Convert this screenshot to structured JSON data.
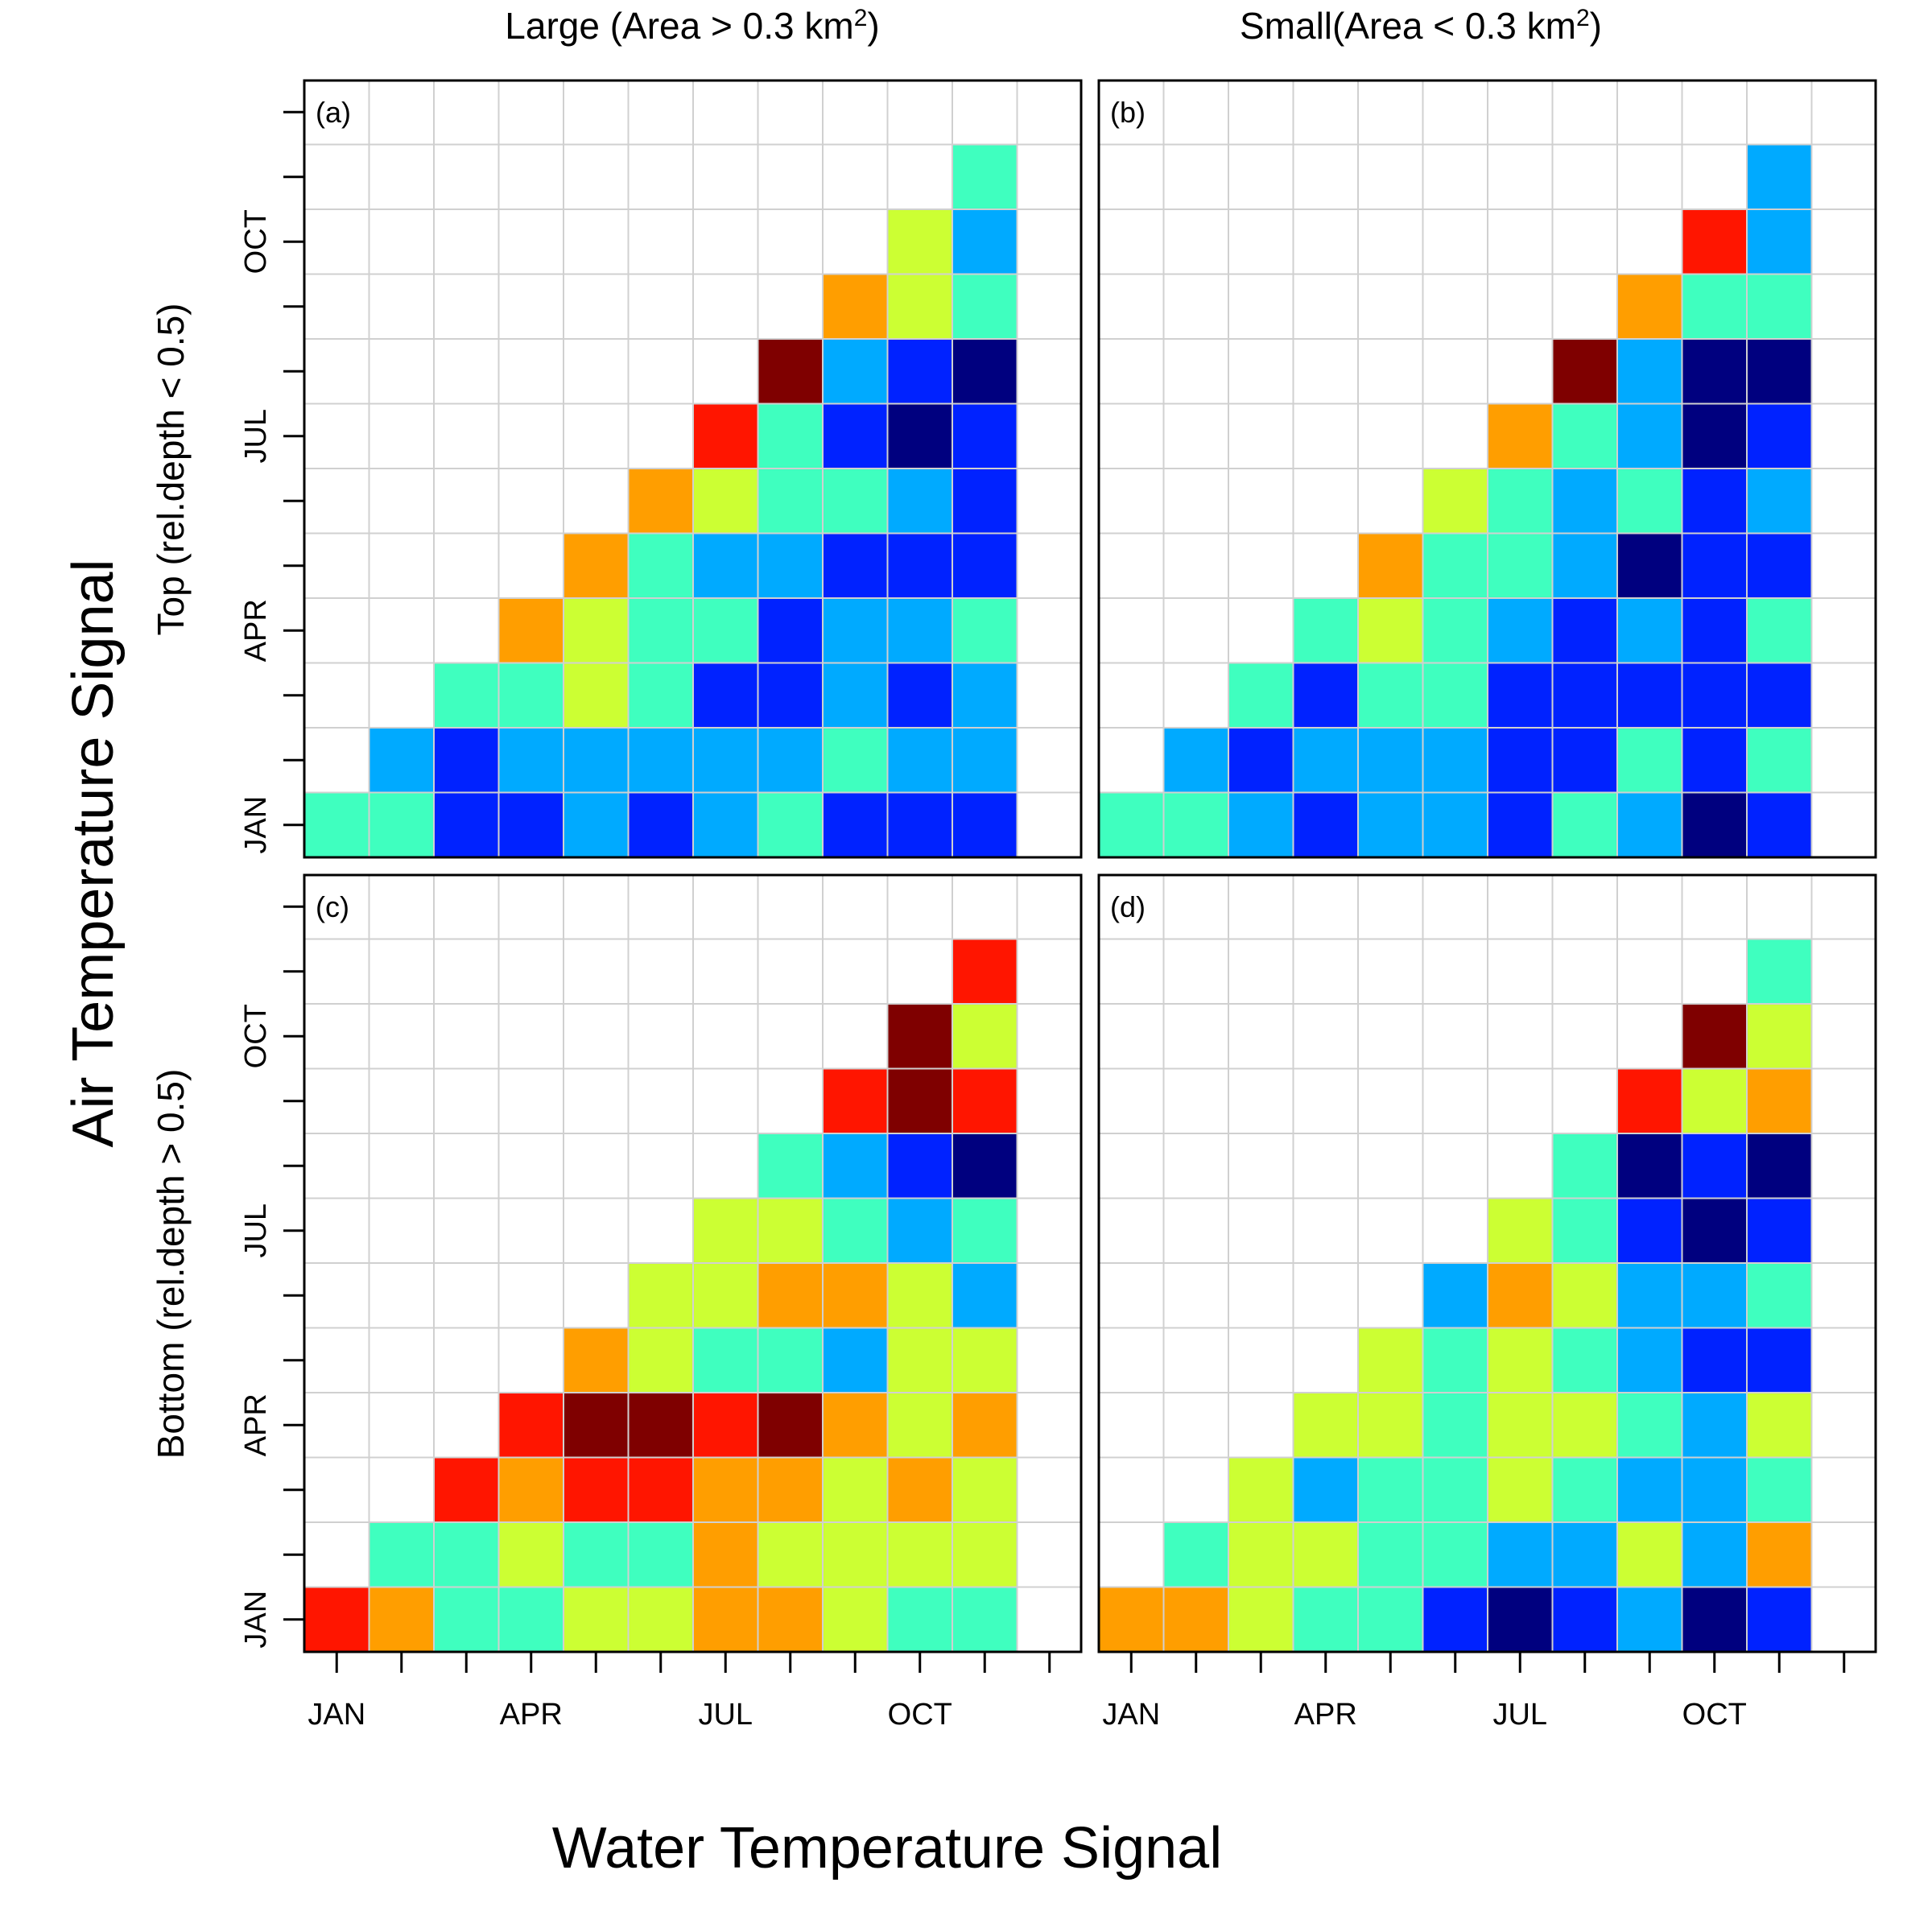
{
  "figure": {
    "xlabel": "Water Temperature Signal",
    "ylabel": "Air Temperature Signal",
    "column_titles": [
      {
        "pre": "Large (Area > 0.3 km",
        "sup": "2",
        "post": ")"
      },
      {
        "pre": "Small(Area < 0.3 km",
        "sup": "2",
        "post": ")"
      }
    ],
    "row_titles": [
      "Top (rel.depth < 0.5)",
      "Bottom (rel.depth > 0.5)"
    ]
  },
  "colors": {
    "palette": {
      "1": "#00007f",
      "2": "#0022ff",
      "3": "#00aaff",
      "4": "#3fffbf",
      "5": "#ccff33",
      "6": "#ff9e00",
      "7": "#ff1500",
      "8": "#7f0000"
    },
    "grid": "#d0d0d0",
    "frame": "#000000"
  },
  "chart_data": {
    "type": "heatmap",
    "x_ticks": [
      "JAN",
      "APR",
      "JUL",
      "OCT"
    ],
    "y_ticks": [
      "JAN",
      "APR",
      "JUL",
      "OCT"
    ],
    "months": 12,
    "panels": [
      {
        "label": "(a)",
        "rows": [
          [
            4,
            4,
            2,
            2,
            3,
            2,
            3,
            4,
            2,
            2,
            2
          ],
          [
            3,
            2,
            3,
            3,
            3,
            3,
            3,
            4,
            3,
            3
          ],
          [
            4,
            4,
            5,
            4,
            2,
            2,
            3,
            2,
            3
          ],
          [
            6,
            5,
            4,
            4,
            2,
            3,
            3,
            4
          ],
          [
            6,
            4,
            3,
            3,
            2,
            2,
            2
          ],
          [
            6,
            5,
            4,
            4,
            3,
            2
          ],
          [
            7,
            4,
            2,
            1,
            2
          ],
          [
            8,
            3,
            2,
            1
          ],
          [
            6,
            5,
            4
          ],
          [
            5,
            3
          ],
          [
            4
          ]
        ]
      },
      {
        "label": "(b)",
        "rows": [
          [
            4,
            4,
            3,
            2,
            3,
            3,
            2,
            4,
            3,
            1,
            2
          ],
          [
            3,
            2,
            3,
            3,
            3,
            2,
            2,
            4,
            2,
            4
          ],
          [
            4,
            2,
            4,
            4,
            2,
            2,
            2,
            2,
            2
          ],
          [
            4,
            5,
            4,
            3,
            2,
            3,
            2,
            4
          ],
          [
            6,
            4,
            4,
            3,
            1,
            2,
            2
          ],
          [
            5,
            4,
            3,
            4,
            2,
            3
          ],
          [
            6,
            4,
            3,
            1,
            2
          ],
          [
            8,
            3,
            1,
            1
          ],
          [
            6,
            4,
            4
          ],
          [
            7,
            3
          ],
          [
            3
          ]
        ]
      },
      {
        "label": "(c)",
        "rows": [
          [
            7,
            6,
            4,
            4,
            5,
            5,
            6,
            6,
            5,
            4,
            4
          ],
          [
            4,
            4,
            5,
            4,
            4,
            6,
            5,
            5,
            5,
            5
          ],
          [
            7,
            6,
            7,
            7,
            6,
            6,
            5,
            6,
            5
          ],
          [
            7,
            8,
            8,
            7,
            8,
            6,
            5,
            6
          ],
          [
            6,
            5,
            4,
            4,
            3,
            5,
            5
          ],
          [
            5,
            5,
            6,
            6,
            5,
            3
          ],
          [
            5,
            5,
            4,
            3,
            4
          ],
          [
            4,
            3,
            2,
            1
          ],
          [
            7,
            8,
            7
          ],
          [
            8,
            5
          ],
          [
            7
          ]
        ]
      },
      {
        "label": "(d)",
        "rows": [
          [
            6,
            6,
            5,
            4,
            4,
            2,
            1,
            2,
            3,
            1,
            2
          ],
          [
            4,
            5,
            5,
            4,
            4,
            3,
            3,
            5,
            3,
            6
          ],
          [
            5,
            3,
            4,
            4,
            5,
            4,
            3,
            3,
            4
          ],
          [
            5,
            5,
            4,
            5,
            5,
            4,
            3,
            5
          ],
          [
            5,
            4,
            5,
            4,
            3,
            2,
            2
          ],
          [
            3,
            6,
            5,
            3,
            3,
            4
          ],
          [
            5,
            4,
            2,
            1,
            2
          ],
          [
            4,
            1,
            2,
            1
          ],
          [
            7,
            5,
            6
          ],
          [
            8,
            5
          ],
          [
            4
          ]
        ]
      }
    ]
  }
}
